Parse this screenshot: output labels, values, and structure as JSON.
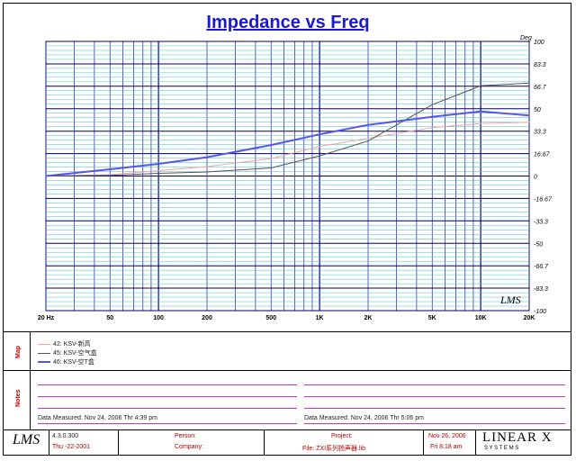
{
  "chart_data": {
    "type": "line",
    "title": "Impedance vs Freq",
    "x_scale": "log",
    "xlim": [
      20,
      20000
    ],
    "ylim": [
      -100,
      100
    ],
    "x_tick_labels": [
      "20 Hz",
      "50",
      "100",
      "200",
      "500",
      "1K",
      "2K",
      "5K",
      "10K",
      "20K"
    ],
    "x_tick_values": [
      20,
      50,
      100,
      200,
      500,
      1000,
      2000,
      5000,
      10000,
      20000
    ],
    "y_tick_labels": [
      "100",
      "83.3",
      "66.7",
      "50",
      "33.3",
      "16.67",
      "0",
      "-16.67",
      "-33.3",
      "-50",
      "-66.7",
      "-83.3",
      "-100"
    ],
    "y_tick_values": [
      100,
      83.3,
      66.7,
      50,
      33.3,
      16.67,
      0,
      -16.67,
      -33.3,
      -50,
      -66.7,
      -83.3,
      -100
    ],
    "y_unit": "Deg",
    "series": [
      {
        "name": "42: KSV-新高",
        "color": "#e8a8a8",
        "x": [
          20,
          50,
          100,
          200,
          500,
          1000,
          2000,
          5000,
          10000,
          20000
        ],
        "y": [
          0,
          1,
          4,
          7,
          13,
          22,
          28,
          36,
          39,
          40
        ]
      },
      {
        "name": "45: KSV-空气盒",
        "color": "#555555",
        "x": [
          20,
          50,
          100,
          200,
          500,
          1000,
          2000,
          5000,
          10000,
          20000
        ],
        "y": [
          0,
          0.5,
          2,
          3,
          6,
          15,
          26,
          53,
          67,
          69
        ]
      },
      {
        "name": "46: KSV-空T盒",
        "color": "#5555ee",
        "x": [
          20,
          50,
          100,
          200,
          500,
          1000,
          2000,
          5000,
          10000,
          20000
        ],
        "y": [
          0,
          5,
          9,
          14,
          23,
          31,
          38,
          44,
          48,
          45
        ]
      }
    ],
    "annotation": "LMS"
  },
  "side_labels": {
    "map": "Map",
    "notes": "Notes"
  },
  "notes": {
    "left_measured": "Data Measured: Nov 24, 2006  Thr  4:39 pm",
    "right_measured": "Data Measured: Nov 24, 2006  Thr  5:06 pm"
  },
  "footer": {
    "logo": "LMS",
    "version": "4.3.0.300",
    "date_line": "Thu  -22-2001",
    "person_label": "Person:",
    "company_label": "Company:",
    "project_label": "Project:",
    "file_label": "File: ZXI系列扬声器.lib",
    "date": "Nov 26, 2006",
    "time": "Fri  8:18 am",
    "brand": "LINEAR X",
    "brand_sub": "S Y S T E M S"
  }
}
